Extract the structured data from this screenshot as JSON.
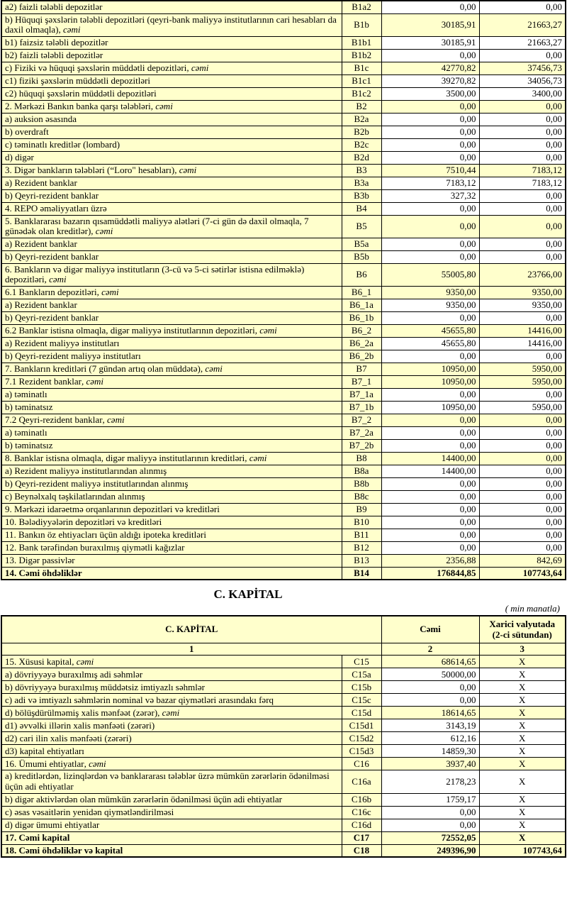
{
  "colors": {
    "cell_yellow": "#FFFFCC",
    "border_black": "#000000",
    "page_background": "#FFFFFF"
  },
  "liabilities_table": {
    "rows": [
      {
        "c": "B1a2",
        "l": "a2) faizli tələbli depozitlər",
        "s": "",
        "i": 3,
        "h": false,
        "b": false,
        "v1": "0,00",
        "v2": "0,00"
      },
      {
        "c": "B1b",
        "l": "b) Hüquqi şəxslərin tələbli depozitləri (qeyri-bank maliyyə institutlarının cari hesabları da daxil olmaqla)",
        "s": ", cəmi",
        "i": 1,
        "h": true,
        "b": false,
        "v1": "30185,91",
        "v2": "21663,27"
      },
      {
        "c": "B1b1",
        "l": "b1) faizsiz tələbli depozitlər",
        "s": "",
        "i": 3,
        "h": false,
        "b": false,
        "v1": "30185,91",
        "v2": "21663,27"
      },
      {
        "c": "B1b2",
        "l": "b2) faizli tələbli depozitlər",
        "s": "",
        "i": 3,
        "h": false,
        "b": false,
        "v1": "0,00",
        "v2": "0,00"
      },
      {
        "c": "B1c",
        "l": "c) Fiziki və hüquqi şəxslərin müddətli depozitləri",
        "s": ", cəmi",
        "i": 1,
        "h": true,
        "b": false,
        "v1": "42770,82",
        "v2": "37456,73"
      },
      {
        "c": "B1c1",
        "l": "c1) fiziki şəxslərin müddətli depozitləri",
        "s": "",
        "i": 3,
        "h": false,
        "b": false,
        "v1": "39270,82",
        "v2": "34056,73"
      },
      {
        "c": "B1c2",
        "l": "c2) hüquqi şəxslərin müddətli depozitləri",
        "s": "",
        "i": 3,
        "h": false,
        "b": false,
        "v1": "3500,00",
        "v2": "3400,00"
      },
      {
        "c": "B2",
        "l": "2. Mərkəzi Bankın banka qarşı tələbləri",
        "s": ", cəmi",
        "i": 0,
        "h": true,
        "b": false,
        "v1": "0,00",
        "v2": "0,00"
      },
      {
        "c": "B2a",
        "l": "a) auksion əsasında",
        "s": "",
        "i": 2,
        "h": false,
        "b": false,
        "v1": "0,00",
        "v2": "0,00"
      },
      {
        "c": "B2b",
        "l": "b) overdraft",
        "s": "",
        "i": 2,
        "h": false,
        "b": false,
        "v1": "0,00",
        "v2": "0,00"
      },
      {
        "c": "B2c",
        "l": "c) təminatlı kreditlər (lombard)",
        "s": "",
        "i": 2,
        "h": false,
        "b": false,
        "v1": "0,00",
        "v2": "0,00"
      },
      {
        "c": "B2d",
        "l": "d) digər",
        "s": "",
        "i": 2,
        "h": false,
        "b": false,
        "v1": "0,00",
        "v2": "0,00"
      },
      {
        "c": "B3",
        "l": "3. Digər bankların tələbləri (“Loro\" hesabları)",
        "s": ", cəmi",
        "i": 0,
        "h": true,
        "b": false,
        "v1": "7510,44",
        "v2": "7183,12"
      },
      {
        "c": "B3a",
        "l": "a) Rezident banklar",
        "s": "",
        "i": 2,
        "h": false,
        "b": false,
        "v1": "7183,12",
        "v2": "7183,12"
      },
      {
        "c": "B3b",
        "l": "b) Qeyri-rezident banklar",
        "s": "",
        "i": 2,
        "h": false,
        "b": false,
        "v1": "327,32",
        "v2": "0,00"
      },
      {
        "c": "B4",
        "l": "4. REPO əməliyyatları  üzrə",
        "s": "",
        "i": 0,
        "h": false,
        "b": false,
        "v1": "0,00",
        "v2": "0,00"
      },
      {
        "c": "B5",
        "l": "5. Banklararası bazarın qısamüddətli maliyyə alətləri (7-ci gün də daxil olmaqla, 7 günədək olan kreditlər)",
        "s": ", cəmi",
        "i": 0,
        "h": true,
        "b": false,
        "v1": "0,00",
        "v2": "0,00"
      },
      {
        "c": "B5a",
        "l": "a) Rezident banklar",
        "s": "",
        "i": 2,
        "h": false,
        "b": false,
        "v1": "0,00",
        "v2": "0,00"
      },
      {
        "c": "B5b",
        "l": "b) Qeyri-rezident banklar",
        "s": "",
        "i": 2,
        "h": false,
        "b": false,
        "v1": "0,00",
        "v2": "0,00"
      },
      {
        "c": "B6",
        "l": "6. Bankların və digər maliyyə institutların (3-cü və 5-ci sətirlər istisna edilməklə) depozitləri",
        "s": ", cəmi",
        "i": 0,
        "h": true,
        "b": false,
        "v1": "55005,80",
        "v2": "23766,00"
      },
      {
        "c": "B6_1",
        "l": "6.1  Bankların depozitləri",
        "s": ", cəmi",
        "i": 0,
        "h": true,
        "b": false,
        "v1": "9350,00",
        "v2": "9350,00"
      },
      {
        "c": "B6_1a",
        "l": "a) Rezident banklar",
        "s": "",
        "i": 2,
        "h": false,
        "b": false,
        "v1": "9350,00",
        "v2": "9350,00"
      },
      {
        "c": "B6_1b",
        "l": "b) Qeyri-rezident banklar",
        "s": "",
        "i": 2,
        "h": false,
        "b": false,
        "v1": "0,00",
        "v2": "0,00"
      },
      {
        "c": "B6_2",
        "l": "6.2 Banklar istisna olmaqla, digər maliyyə institutlarının depozitləri",
        "s": ", cəmi",
        "i": 0,
        "h": true,
        "b": false,
        "v1": "45655,80",
        "v2": "14416,00"
      },
      {
        "c": "B6_2a",
        "l": "a) Rezident maliyyə institutları",
        "s": "",
        "i": 2,
        "h": false,
        "b": false,
        "v1": "45655,80",
        "v2": "14416,00"
      },
      {
        "c": "B6_2b",
        "l": "b) Qeyri-rezident maliyyə institutları",
        "s": "",
        "i": 2,
        "h": false,
        "b": false,
        "v1": "0,00",
        "v2": "0,00"
      },
      {
        "c": "B7",
        "l": "7. Bankların kreditləri (7 gündən artıq olan müddətə)",
        "s": ", cəmi",
        "i": 0,
        "h": true,
        "b": false,
        "v1": "10950,00",
        "v2": "5950,00"
      },
      {
        "c": "B7_1",
        "l": "7.1 Rezident banklar",
        "s": ", cəmi",
        "i": 0,
        "h": true,
        "b": false,
        "v1": "10950,00",
        "v2": "5950,00"
      },
      {
        "c": "B7_1a",
        "l": "a) təminatlı",
        "s": "",
        "i": 2,
        "h": false,
        "b": false,
        "v1": "0,00",
        "v2": "0,00"
      },
      {
        "c": "B7_1b",
        "l": "b) təminatsız",
        "s": "",
        "i": 2,
        "h": false,
        "b": false,
        "v1": "10950,00",
        "v2": "5950,00"
      },
      {
        "c": "B7_2",
        "l": "7.2 Qeyri-rezident banklar",
        "s": ", cəmi",
        "i": 0,
        "h": true,
        "b": false,
        "v1": "0,00",
        "v2": "0,00"
      },
      {
        "c": "B7_2a",
        "l": "a) təminatlı",
        "s": "",
        "i": 2,
        "h": false,
        "b": false,
        "v1": "0,00",
        "v2": "0,00"
      },
      {
        "c": "B7_2b",
        "l": "b) təminatsız",
        "s": "",
        "i": 2,
        "h": false,
        "b": false,
        "v1": "0,00",
        "v2": "0,00"
      },
      {
        "c": "B8",
        "l": "8. Banklar istisna olmaqla, digər maliyyə institutlarının kreditləri",
        "s": ", cəmi",
        "i": 0,
        "h": true,
        "b": false,
        "v1": "14400,00",
        "v2": "0,00"
      },
      {
        "c": "B8a",
        "l": "a) Rezident maliyyə institutlarından alınmış",
        "s": "",
        "i": 2,
        "h": false,
        "b": false,
        "v1": "14400,00",
        "v2": "0,00"
      },
      {
        "c": "B8b",
        "l": "b) Qeyri-rezident maliyyə institutlarından alınmış",
        "s": "",
        "i": 2,
        "h": false,
        "b": false,
        "v1": "0,00",
        "v2": "0,00"
      },
      {
        "c": "B8c",
        "l": "c) Beynəlxalq təşkilatlarından alınmış",
        "s": "",
        "i": 2,
        "h": false,
        "b": false,
        "v1": "0,00",
        "v2": "0,00"
      },
      {
        "c": "B9",
        "l": "9. Mərkəzi idarəetmə orqanlarının depozitləri və kreditləri",
        "s": "",
        "i": 0,
        "h": false,
        "b": false,
        "v1": "0,00",
        "v2": "0,00"
      },
      {
        "c": "B10",
        "l": "10. Bələdiyyələrin depozitləri və kreditləri",
        "s": "",
        "i": 0,
        "h": false,
        "b": false,
        "v1": "0,00",
        "v2": "0,00"
      },
      {
        "c": "B11",
        "l": "11. Bankın öz ehtiyacları üçün aldığı ipoteka kreditləri",
        "s": "",
        "i": 0,
        "h": false,
        "b": false,
        "v1": "0,00",
        "v2": "0,00"
      },
      {
        "c": "B12",
        "l": "12. Bank tərəfindən buraxılmış qiymətli kağızlar",
        "s": "",
        "i": 0,
        "h": false,
        "b": false,
        "v1": "0,00",
        "v2": "0,00"
      },
      {
        "c": "B13",
        "l": "13. Digər passivlər",
        "s": "",
        "i": 0,
        "h": true,
        "b": false,
        "v1": "2356,88",
        "v2": "842,69"
      },
      {
        "c": "B14",
        "l": "14. Cəmi öhdəliklər",
        "s": "",
        "i": 0,
        "h": true,
        "b": true,
        "v1": "176844,85",
        "v2": "107743,64"
      }
    ]
  },
  "capital_section": {
    "title": "C. KAPİTAL",
    "unit_note": "( min manatla)",
    "header": {
      "title_col": "C. KAPİTAL",
      "total_col": "Cəmi",
      "foreign_col_line1": "Xarici valyutada",
      "foreign_col_line2": "(2-ci sütundan)",
      "num_desc": "1",
      "num_total": "2",
      "num_foreign": "3"
    },
    "rows": [
      {
        "c": "C15",
        "l": "15. Xüsusi kapital",
        "s": ", cəmi",
        "i": 0,
        "h": true,
        "b": false,
        "v1": "68614,65",
        "v2": "X"
      },
      {
        "c": "C15a",
        "l": "a) dövriyyəyə buraxılmış adi səhmlər",
        "s": "",
        "i": 2,
        "h": false,
        "b": false,
        "v1": "50000,00",
        "v2": "X"
      },
      {
        "c": "C15b",
        "l": "b) dövriyyəyə buraxılmış müddətsiz imtiyazlı səhmlər",
        "s": "",
        "i": 2,
        "h": false,
        "b": false,
        "v1": "0,00",
        "v2": "X"
      },
      {
        "c": "C15c",
        "l": "c) adi və imtiyazlı səhmlərin nominal və bazar qiymətləri arasındakı fərq",
        "s": "",
        "i": 2,
        "h": false,
        "b": false,
        "v1": "0,00",
        "v2": "X"
      },
      {
        "c": "C15d",
        "l": "d) bölüşdürülməmiş xalis mənfəət (zərər)",
        "s": ", cəmi",
        "i": 2,
        "h": true,
        "b": false,
        "v1": "18614,65",
        "v2": "X"
      },
      {
        "c": "C15d1",
        "l": "d1) əvvəlki illərin xalis mənfəəti (zərəri)",
        "s": "",
        "i": 3,
        "h": false,
        "b": false,
        "v1": "3143,19",
        "v2": "X"
      },
      {
        "c": "C15d2",
        "l": "d2) cari ilin xalis mənfəəti (zərəri)",
        "s": "",
        "i": 3,
        "h": false,
        "b": false,
        "v1": "612,16",
        "v2": "X"
      },
      {
        "c": "C15d3",
        "l": "d3) kapital ehtiyatları",
        "s": "",
        "i": 3,
        "h": false,
        "b": false,
        "v1": "14859,30",
        "v2": "X"
      },
      {
        "c": "C16",
        "l": "16. Ümumi ehtiyatlar",
        "s": ", cəmi",
        "i": 0,
        "h": true,
        "b": false,
        "v1": "3937,40",
        "v2": "X"
      },
      {
        "c": "C16a",
        "l": "a) kreditlərdən, lizinqlərdən və banklararası  tələblər üzrə mümkün zərərlərin ödənilməsi üçün adi ehtiyatlar",
        "s": "",
        "i": 2,
        "h": false,
        "b": false,
        "v1": "2178,23",
        "v2": "X"
      },
      {
        "c": "C16b",
        "l": "b) digər aktivlərdən olan mümkün zərərlərin ödənilməsi üçün adi ehtiyatlar",
        "s": "",
        "i": 2,
        "h": false,
        "b": false,
        "v1": "1759,17",
        "v2": "X"
      },
      {
        "c": "C16c",
        "l": "c) əsas vəsaitlərin yenidən qiymətləndirilməsi",
        "s": "",
        "i": 2,
        "h": false,
        "b": false,
        "v1": "0,00",
        "v2": "X"
      },
      {
        "c": "C16d",
        "l": "d) digər ümumi ehtiyatlar",
        "s": "",
        "i": 2,
        "h": false,
        "b": false,
        "v1": "0,00",
        "v2": "X"
      },
      {
        "c": "C17",
        "l": "17. Cəmi kapital",
        "s": "",
        "i": 0,
        "h": true,
        "b": true,
        "v1": "72552,05",
        "v2": "X"
      },
      {
        "c": "C18",
        "l": "18. Cəmi öhdəliklər və kapital",
        "s": "",
        "i": 0,
        "h": true,
        "b": true,
        "v1": "249396,90",
        "v2": "107743,64"
      }
    ]
  }
}
